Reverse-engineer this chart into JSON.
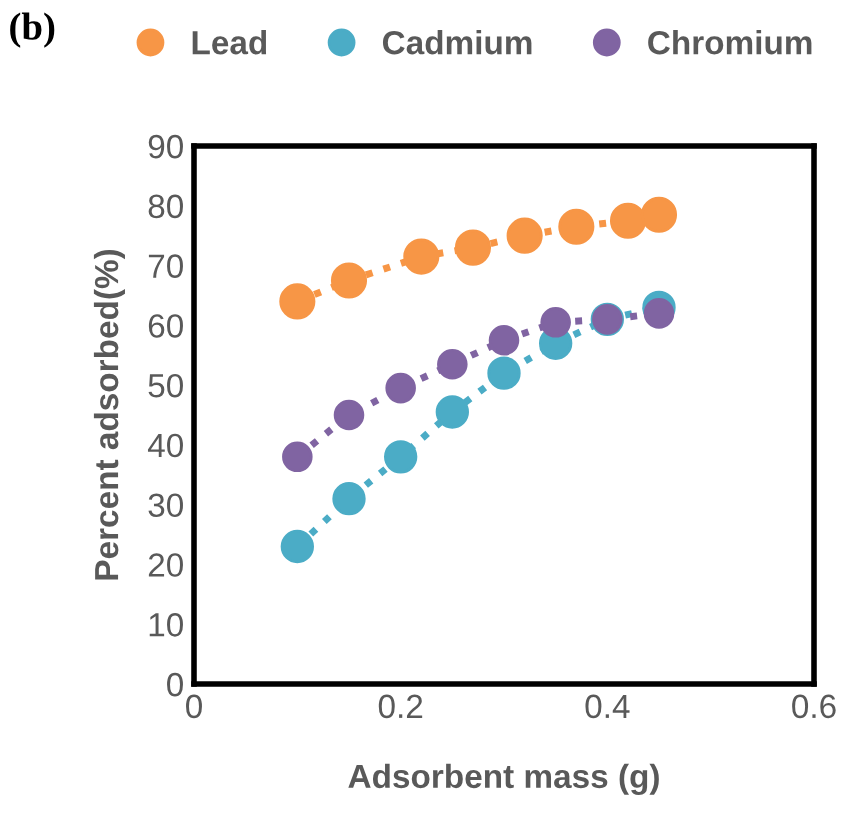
{
  "chart_data": {
    "type": "line",
    "title": "(b)",
    "xlabel": "Adsorbent mass (g)",
    "ylabel": "Percent adsorbed(%)",
    "series": [
      {
        "name": "Lead",
        "color": "#f79646",
        "x": [
          0.1,
          0.15,
          0.22,
          0.27,
          0.32,
          0.37,
          0.42,
          0.45
        ],
        "values": [
          64,
          67.5,
          71.5,
          73,
          75,
          76.5,
          77.5,
          78.5
        ]
      },
      {
        "name": "Cadmium",
        "color": "#4bacc6",
        "x": [
          0.1,
          0.15,
          0.2,
          0.25,
          0.3,
          0.35,
          0.4,
          0.45
        ],
        "values": [
          23,
          31,
          38,
          45.5,
          52,
          57,
          61,
          63
        ]
      },
      {
        "name": "Chromium",
        "color": "#8064a2",
        "x": [
          0.1,
          0.15,
          0.2,
          0.25,
          0.3,
          0.35,
          0.4,
          0.45
        ],
        "values": [
          38,
          45,
          49.5,
          53.5,
          57.5,
          60.5,
          61,
          62
        ]
      }
    ],
    "xlim": [
      0,
      0.6
    ],
    "xticks": [
      0,
      {
        "value": 0.2,
        "label": "0.2"
      },
      {
        "value": 0.4,
        "label": "0.4"
      },
      {
        "value": 0.6,
        "label": "0.6"
      }
    ],
    "ylim": [
      0,
      90
    ],
    "yticks": [
      0,
      10,
      20,
      30,
      40,
      50,
      60,
      70,
      80,
      90
    ],
    "grid": false,
    "legend": "top",
    "marker": "circle",
    "line_style": "dotted"
  }
}
